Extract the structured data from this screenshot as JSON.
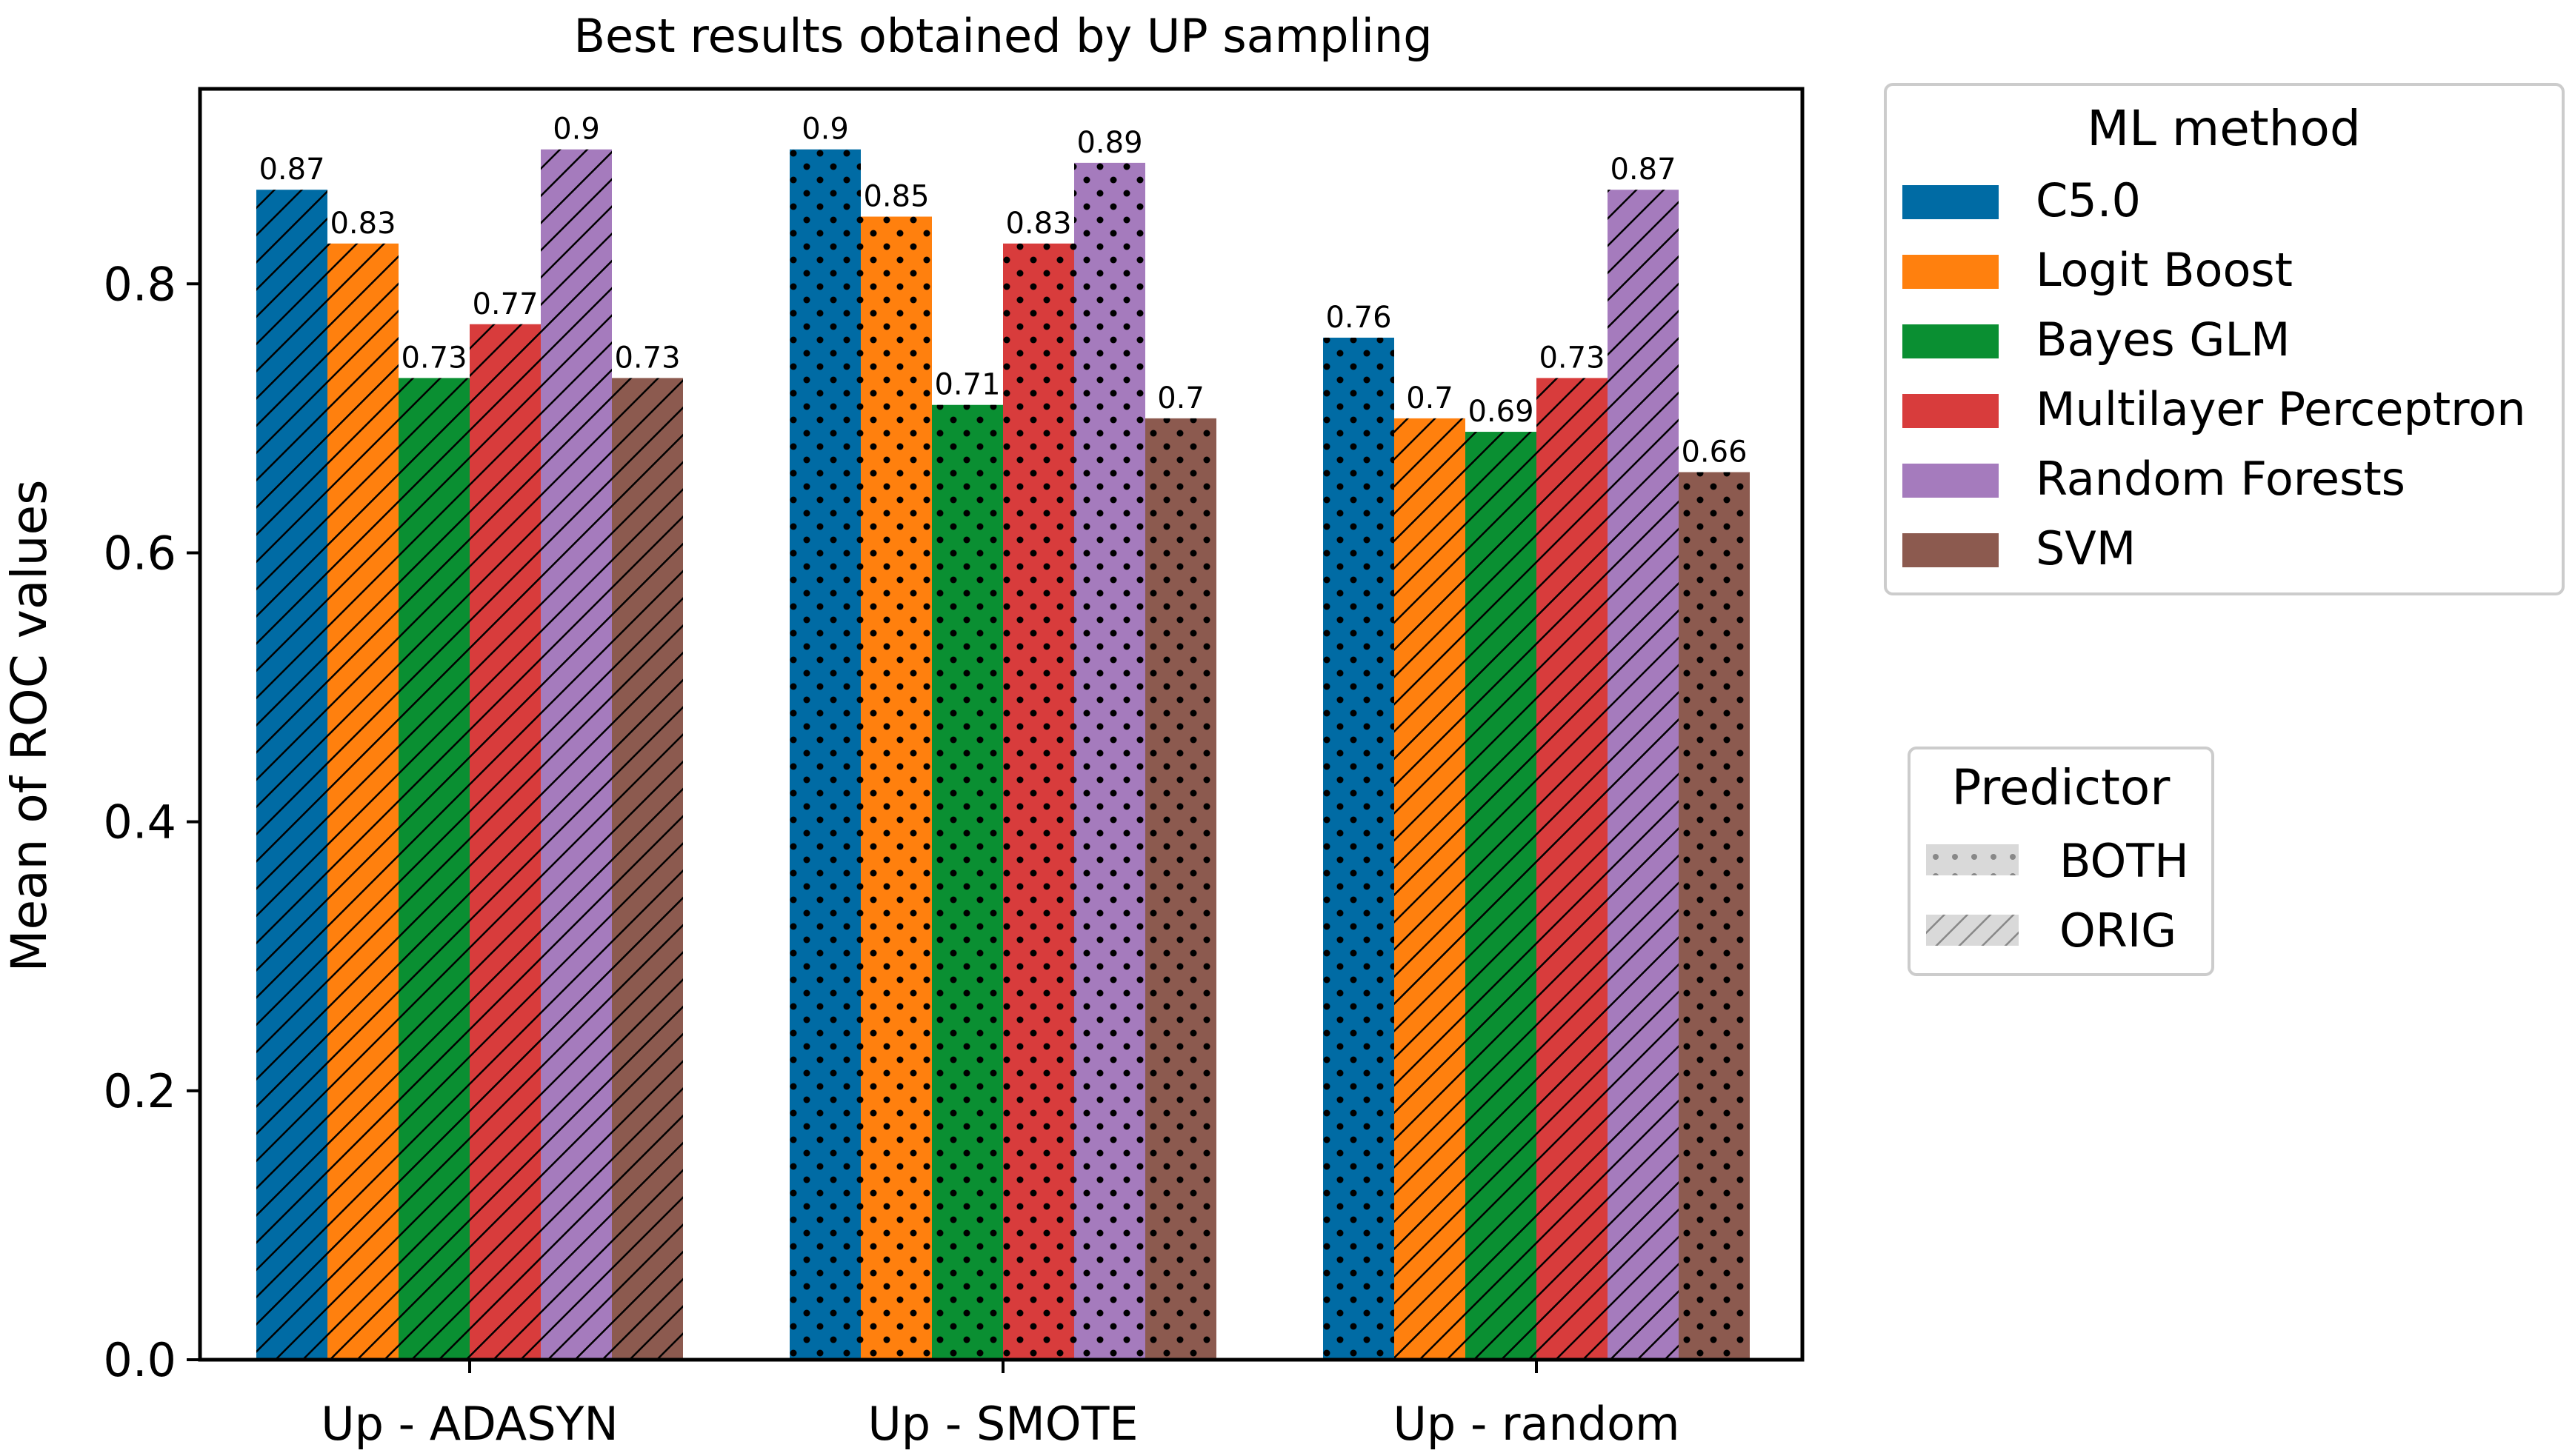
{
  "chart_data": {
    "type": "bar",
    "title": "Best results obtained by UP sampling",
    "xlabel": "",
    "ylabel": "Mean of ROC values",
    "ylim": [
      0,
      0.945
    ],
    "yticks": [
      0.0,
      0.2,
      0.4,
      0.6,
      0.8
    ],
    "ytick_labels": [
      "0.0",
      "0.2",
      "0.4",
      "0.6",
      "0.8"
    ],
    "grid": false,
    "categories": [
      "Up - ADASYN",
      "Up - SMOTE",
      "Up - random"
    ],
    "series": [
      {
        "name": "C5.0",
        "color": "#006ba4",
        "values": [
          0.87,
          0.9,
          0.76
        ],
        "value_labels": [
          "0.87",
          "0.9",
          "0.76"
        ],
        "predictor": [
          "ORIG",
          "BOTH",
          "BOTH"
        ]
      },
      {
        "name": "Logit Boost",
        "color": "#ff800e",
        "values": [
          0.83,
          0.85,
          0.7
        ],
        "value_labels": [
          "0.83",
          "0.85",
          "0.7"
        ],
        "predictor": [
          "ORIG",
          "BOTH",
          "ORIG"
        ]
      },
      {
        "name": "Bayes GLM",
        "color": "#0a8f32",
        "values": [
          0.73,
          0.71,
          0.69
        ],
        "value_labels": [
          "0.73",
          "0.71",
          "0.69"
        ],
        "predictor": [
          "ORIG",
          "BOTH",
          "ORIG"
        ]
      },
      {
        "name": "Multilayer Perceptron",
        "color": "#d83c3c",
        "values": [
          0.77,
          0.83,
          0.73
        ],
        "value_labels": [
          "0.77",
          "0.83",
          "0.73"
        ],
        "predictor": [
          "ORIG",
          "BOTH",
          "ORIG"
        ]
      },
      {
        "name": "Random Forests",
        "color": "#a57bbd",
        "values": [
          0.9,
          0.89,
          0.87
        ],
        "value_labels": [
          "0.9",
          "0.89",
          "0.87"
        ],
        "predictor": [
          "ORIG",
          "BOTH",
          "ORIG"
        ]
      },
      {
        "name": "SVM",
        "color": "#8c5a4f",
        "values": [
          0.73,
          0.7,
          0.66
        ],
        "value_labels": [
          "0.73",
          "0.7",
          "0.66"
        ],
        "predictor": [
          "ORIG",
          "BOTH",
          "BOTH"
        ]
      }
    ],
    "legend_ml": {
      "title": "ML method",
      "position": "top-right outside"
    },
    "legend_predictor": {
      "title": "Predictor",
      "position": "right outside",
      "entries": [
        "BOTH",
        "ORIG"
      ]
    }
  }
}
